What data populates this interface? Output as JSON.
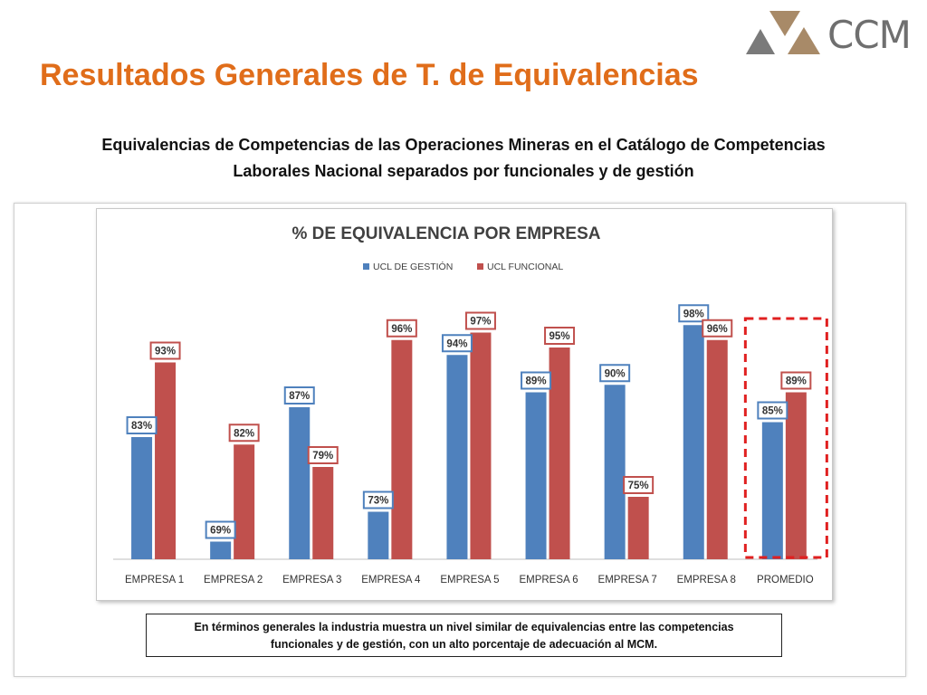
{
  "logo": {
    "text": "CCM",
    "colors": {
      "gray": "#7a7a7a",
      "tan": "#a88a68"
    }
  },
  "page_title": "Resultados Generales de T. de Equivalencias",
  "subtitle_line1": "Equivalencias de Competencias de las Operaciones Mineras en el Catálogo de Competencias",
  "subtitle_line2": "Laborales Nacional separados por funcionales y de gestión",
  "note_line1": "En términos generales la industria muestra un nivel similar de equivalencias entre las competencias",
  "note_line2": "funcionales y de gestión, con un alto porcentaje de adecuación al MCM.",
  "colors": {
    "title": "#e06d1a",
    "series_gestion": "#4f81bd",
    "series_funcional": "#c0504d",
    "highlight_border": "#e02020"
  },
  "chart_data": {
    "type": "bar",
    "title": "% DE EQUIVALENCIA POR EMPRESA",
    "categories": [
      "EMPRESA 1",
      "EMPRESA 2",
      "EMPRESA 3",
      "EMPRESA 4",
      "EMPRESA 5",
      "EMPRESA 6",
      "EMPRESA 7",
      "EMPRESA 8",
      "PROMEDIO"
    ],
    "series": [
      {
        "name": "UCL DE GESTIÓN",
        "values": [
          83,
          69,
          87,
          73,
          94,
          89,
          90,
          98,
          85
        ],
        "labels": [
          "83%",
          "69%",
          "87%",
          "73%",
          "94%",
          "89%",
          "90%",
          "98%",
          "85%"
        ]
      },
      {
        "name": "UCL FUNCIONAL",
        "values": [
          93,
          82,
          79,
          96,
          97,
          95,
          75,
          96,
          89
        ],
        "labels": [
          "93%",
          "82%",
          "79%",
          "96%",
          "97%",
          "95%",
          "75%",
          "96%",
          "89%"
        ]
      }
    ],
    "ylim": [
      0,
      100
    ],
    "legend": "top",
    "grid": false,
    "highlighted_category": "PROMEDIO"
  }
}
